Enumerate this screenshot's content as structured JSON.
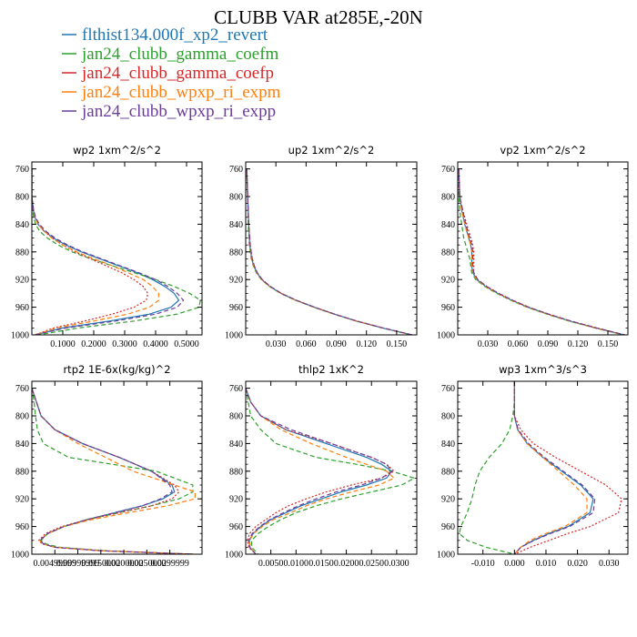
{
  "figure": {
    "title": "CLUBB VAR at285E,-20N",
    "legend": [
      {
        "label": "flthist134.000f_xp2_revert",
        "color": "#1f77b4",
        "dash": "solid"
      },
      {
        "label": "jan24_clubb_gamma_coefm",
        "color": "#2ca02c",
        "dash": "dashed"
      },
      {
        "label": "jan24_clubb_gamma_coefp",
        "color": "#d62728",
        "dash": "dotted"
      },
      {
        "label": "jan24_clubb_wpxp_ri_expm",
        "color": "#ff7f0e",
        "dash": "dashed"
      },
      {
        "label": "jan24_clubb_wpxp_ri_expp",
        "color": "#6a3d9a",
        "dash": "dashed"
      }
    ]
  },
  "chart_data": [
    {
      "type": "line",
      "title": "wp2  1xm^2/s^2",
      "xlim": [
        0,
        0.55
      ],
      "ylim": [
        1000,
        750
      ],
      "xticks": [
        0.1,
        0.2,
        0.3,
        0.4,
        0.5
      ],
      "xtick_labels": [
        "0.1000",
        "0.2000",
        "0.3000",
        "0.4000",
        "0.5000"
      ],
      "yticks": [
        760,
        800,
        840,
        880,
        920,
        960,
        1000
      ],
      "y": [
        760,
        800,
        820,
        830,
        840,
        850,
        860,
        870,
        880,
        890,
        900,
        910,
        920,
        930,
        940,
        950,
        960,
        970,
        980,
        990,
        1000
      ],
      "series": [
        {
          "values": [
            0,
            0,
            0.005,
            0.01,
            0.02,
            0.04,
            0.07,
            0.11,
            0.16,
            0.22,
            0.28,
            0.34,
            0.39,
            0.43,
            0.46,
            0.475,
            0.45,
            0.38,
            0.25,
            0.1,
            0.01
          ]
        },
        {
          "values": [
            0,
            0,
            0.003,
            0.006,
            0.012,
            0.025,
            0.05,
            0.085,
            0.13,
            0.19,
            0.26,
            0.33,
            0.4,
            0.46,
            0.51,
            0.545,
            0.54,
            0.47,
            0.33,
            0.15,
            0.02
          ]
        },
        {
          "values": [
            0,
            0,
            0.005,
            0.01,
            0.02,
            0.04,
            0.065,
            0.1,
            0.14,
            0.19,
            0.24,
            0.29,
            0.33,
            0.36,
            0.375,
            0.37,
            0.33,
            0.26,
            0.17,
            0.07,
            0.01
          ]
        },
        {
          "values": [
            0,
            0,
            0.005,
            0.01,
            0.02,
            0.04,
            0.065,
            0.1,
            0.145,
            0.2,
            0.26,
            0.31,
            0.36,
            0.39,
            0.41,
            0.41,
            0.38,
            0.31,
            0.2,
            0.08,
            0.01
          ]
        },
        {
          "values": [
            0,
            0,
            0.006,
            0.012,
            0.024,
            0.045,
            0.075,
            0.115,
            0.165,
            0.225,
            0.285,
            0.345,
            0.4,
            0.44,
            0.47,
            0.49,
            0.47,
            0.4,
            0.27,
            0.11,
            0.01
          ]
        }
      ]
    },
    {
      "type": "line",
      "title": "up2  1xm^2/s^2",
      "xlim": [
        0,
        0.17
      ],
      "ylim": [
        1000,
        750
      ],
      "xticks": [
        0.03,
        0.06,
        0.09,
        0.12,
        0.15
      ],
      "xtick_labels": [
        "0.030",
        "0.060",
        "0.090",
        "0.120",
        "0.150"
      ],
      "yticks": [
        760,
        800,
        840,
        880,
        920,
        960,
        1000
      ],
      "y": [
        760,
        800,
        840,
        870,
        890,
        900,
        910,
        920,
        930,
        940,
        950,
        960,
        970,
        980,
        990,
        1000
      ],
      "series": [
        {
          "values": [
            0.001,
            0.002,
            0.003,
            0.004,
            0.006,
            0.008,
            0.011,
            0.016,
            0.024,
            0.035,
            0.05,
            0.068,
            0.088,
            0.11,
            0.136,
            0.165
          ]
        },
        {
          "values": [
            0.001,
            0.002,
            0.0025,
            0.0035,
            0.0055,
            0.0075,
            0.0105,
            0.0155,
            0.0235,
            0.0345,
            0.0495,
            0.0675,
            0.0875,
            0.1095,
            0.1355,
            0.1645
          ]
        },
        {
          "values": [
            0.001,
            0.002,
            0.003,
            0.0045,
            0.0065,
            0.0085,
            0.0115,
            0.0165,
            0.0245,
            0.0355,
            0.0505,
            0.0685,
            0.0885,
            0.1105,
            0.1365,
            0.1655
          ]
        },
        {
          "values": [
            0.001,
            0.002,
            0.003,
            0.004,
            0.006,
            0.008,
            0.011,
            0.016,
            0.024,
            0.035,
            0.05,
            0.068,
            0.088,
            0.11,
            0.136,
            0.165
          ]
        },
        {
          "values": [
            0.001,
            0.002,
            0.003,
            0.0045,
            0.0065,
            0.0085,
            0.0115,
            0.0165,
            0.0245,
            0.0355,
            0.0505,
            0.0685,
            0.0885,
            0.1105,
            0.1365,
            0.1655
          ]
        }
      ]
    },
    {
      "type": "line",
      "title": "vp2  1xm^2/s^2",
      "xlim": [
        0,
        0.17
      ],
      "ylim": [
        1000,
        750
      ],
      "xticks": [
        0.03,
        0.06,
        0.09,
        0.12,
        0.15
      ],
      "xtick_labels": [
        "0.030",
        "0.060",
        "0.090",
        "0.120",
        "0.150"
      ],
      "yticks": [
        760,
        800,
        840,
        880,
        920,
        960,
        1000
      ],
      "y": [
        760,
        800,
        820,
        840,
        860,
        870,
        880,
        890,
        900,
        910,
        920,
        930,
        940,
        950,
        960,
        970,
        980,
        990,
        1000
      ],
      "series": [
        {
          "values": [
            0.001,
            0.002,
            0.004,
            0.007,
            0.011,
            0.013,
            0.014,
            0.014,
            0.014,
            0.015,
            0.019,
            0.028,
            0.04,
            0.054,
            0.07,
            0.09,
            0.112,
            0.138,
            0.166
          ]
        },
        {
          "values": [
            0.001,
            0.001,
            0.002,
            0.004,
            0.006,
            0.008,
            0.01,
            0.012,
            0.013,
            0.014,
            0.018,
            0.027,
            0.039,
            0.053,
            0.069,
            0.089,
            0.111,
            0.137,
            0.165
          ]
        },
        {
          "values": [
            0.001,
            0.002,
            0.005,
            0.009,
            0.013,
            0.015,
            0.016,
            0.016,
            0.016,
            0.016,
            0.02,
            0.029,
            0.041,
            0.055,
            0.071,
            0.091,
            0.113,
            0.139,
            0.167
          ]
        },
        {
          "values": [
            0.001,
            0.002,
            0.004,
            0.007,
            0.011,
            0.013,
            0.014,
            0.014,
            0.014,
            0.015,
            0.019,
            0.028,
            0.04,
            0.054,
            0.07,
            0.09,
            0.112,
            0.138,
            0.166
          ]
        },
        {
          "values": [
            0.001,
            0.002,
            0.005,
            0.008,
            0.012,
            0.014,
            0.015,
            0.015,
            0.015,
            0.016,
            0.02,
            0.029,
            0.041,
            0.055,
            0.071,
            0.091,
            0.113,
            0.139,
            0.167
          ]
        }
      ]
    },
    {
      "type": "line",
      "title": "rtp2  1E-6x(kg/kg)^2",
      "xlim": [
        0,
        0.037
      ],
      "ylim": [
        1000,
        750
      ],
      "xticks": [
        0.005,
        0.01,
        0.015,
        0.02,
        0.025,
        0.03
      ],
      "xtick_labels": [
        "0.00499999",
        "0.00999999",
        "0.0150000",
        "0.0200000",
        "0.0250000",
        "0.0299999"
      ],
      "yticks": [
        760,
        800,
        840,
        880,
        920,
        960,
        1000
      ],
      "y": [
        760,
        780,
        800,
        820,
        840,
        860,
        880,
        900,
        910,
        920,
        930,
        940,
        950,
        960,
        970,
        980,
        985,
        990,
        995,
        1000
      ],
      "series": [
        {
          "values": [
            0,
            0.001,
            0.002,
            0.005,
            0.011,
            0.019,
            0.026,
            0.0305,
            0.031,
            0.0285,
            0.024,
            0.018,
            0.012,
            0.007,
            0.0035,
            0.0018,
            0.0025,
            0.005,
            0.015,
            0.035
          ]
        },
        {
          "values": [
            0,
            0.0005,
            0.0008,
            0.0012,
            0.0025,
            0.008,
            0.027,
            0.035,
            0.035,
            0.032,
            0.026,
            0.019,
            0.012,
            0.007,
            0.0035,
            0.002,
            0.003,
            0.006,
            0.016,
            0.035
          ]
        },
        {
          "values": [
            0,
            0.001,
            0.002,
            0.005,
            0.011,
            0.019,
            0.026,
            0.031,
            0.032,
            0.0305,
            0.026,
            0.019,
            0.012,
            0.0065,
            0.003,
            0.0015,
            0.0022,
            0.005,
            0.015,
            0.035
          ]
        },
        {
          "values": [
            0,
            0.001,
            0.002,
            0.005,
            0.01,
            0.016,
            0.022,
            0.031,
            0.0355,
            0.0355,
            0.0295,
            0.021,
            0.013,
            0.007,
            0.0035,
            0.0017,
            0.0023,
            0.005,
            0.015,
            0.035
          ]
        },
        {
          "values": [
            0,
            0.001,
            0.002,
            0.005,
            0.011,
            0.019,
            0.026,
            0.03,
            0.0305,
            0.028,
            0.024,
            0.018,
            0.012,
            0.007,
            0.0035,
            0.0018,
            0.0025,
            0.005,
            0.015,
            0.035
          ]
        }
      ]
    },
    {
      "type": "line",
      "title": "thlp2  1xK^2",
      "xlim": [
        0,
        0.034
      ],
      "ylim": [
        1000,
        750
      ],
      "xticks": [
        0.005,
        0.01,
        0.015,
        0.02,
        0.025,
        0.03
      ],
      "xtick_labels": [
        "0.0050",
        "0.0100",
        "0.0150",
        "0.0200",
        "0.0250",
        "0.0300"
      ],
      "yticks": [
        760,
        800,
        840,
        880,
        920,
        960,
        1000
      ],
      "y": [
        760,
        780,
        800,
        820,
        840,
        860,
        870,
        880,
        890,
        900,
        910,
        920,
        930,
        940,
        950,
        960,
        970,
        980,
        990,
        1000
      ],
      "series": [
        {
          "values": [
            0,
            0.001,
            0.003,
            0.008,
            0.016,
            0.024,
            0.027,
            0.029,
            0.028,
            0.024,
            0.019,
            0.015,
            0.011,
            0.008,
            0.005,
            0.003,
            0.0015,
            0.0007,
            0.0008,
            0.002
          ]
        },
        {
          "values": [
            0,
            0.0005,
            0.001,
            0.003,
            0.006,
            0.014,
            0.022,
            0.029,
            0.0335,
            0.031,
            0.025,
            0.019,
            0.014,
            0.01,
            0.007,
            0.0045,
            0.0025,
            0.0012,
            0.0012,
            0.0025
          ]
        },
        {
          "values": [
            0,
            0.001,
            0.003,
            0.008,
            0.017,
            0.025,
            0.028,
            0.0295,
            0.027,
            0.021,
            0.016,
            0.012,
            0.0085,
            0.006,
            0.004,
            0.002,
            0.0008,
            0.0003,
            0.0006,
            0.002
          ]
        },
        {
          "values": [
            0,
            0.001,
            0.003,
            0.007,
            0.013,
            0.02,
            0.024,
            0.028,
            0.0295,
            0.0265,
            0.021,
            0.016,
            0.012,
            0.009,
            0.0055,
            0.0033,
            0.0016,
            0.0008,
            0.0009,
            0.002
          ]
        },
        {
          "values": [
            0,
            0.001,
            0.003,
            0.009,
            0.017,
            0.025,
            0.028,
            0.029,
            0.027,
            0.023,
            0.018,
            0.014,
            0.0105,
            0.0075,
            0.0048,
            0.0028,
            0.0013,
            0.0006,
            0.0008,
            0.002
          ]
        }
      ]
    },
    {
      "type": "line",
      "title": "wp3  1xm^3/s^3",
      "xlim": [
        -0.018,
        0.036
      ],
      "ylim": [
        1000,
        750
      ],
      "xticks": [
        -0.01,
        0,
        0.01,
        0.02,
        0.03
      ],
      "xtick_labels": [
        "-0.010",
        "0.000",
        "0.010",
        "0.020",
        "0.030"
      ],
      "yticks": [
        760,
        800,
        840,
        880,
        920,
        960,
        1000
      ],
      "y": [
        750,
        780,
        800,
        820,
        840,
        860,
        880,
        900,
        920,
        940,
        960,
        970,
        980,
        990,
        1000
      ],
      "series": [
        {
          "values": [
            0,
            0,
            0,
            0.001,
            0.004,
            0.009,
            0.015,
            0.021,
            0.025,
            0.024,
            0.017,
            0.011,
            0.006,
            0.002,
            0
          ]
        },
        {
          "values": [
            0,
            0,
            -0.0005,
            -0.0015,
            -0.004,
            -0.008,
            -0.011,
            -0.0125,
            -0.0135,
            -0.015,
            -0.017,
            -0.0175,
            -0.015,
            -0.009,
            0
          ]
        },
        {
          "values": [
            0,
            0,
            0,
            0.002,
            0.006,
            0.013,
            0.021,
            0.029,
            0.034,
            0.033,
            0.024,
            0.017,
            0.011,
            0.005,
            0
          ]
        },
        {
          "values": [
            0,
            0,
            0,
            0.001,
            0.004,
            0.009,
            0.014,
            0.019,
            0.023,
            0.023,
            0.016,
            0.01,
            0.005,
            0.002,
            0
          ]
        },
        {
          "values": [
            0,
            0,
            0,
            0.0012,
            0.0045,
            0.0095,
            0.0155,
            0.0215,
            0.0255,
            0.025,
            0.0175,
            0.0115,
            0.0062,
            0.002,
            0
          ]
        }
      ]
    }
  ]
}
